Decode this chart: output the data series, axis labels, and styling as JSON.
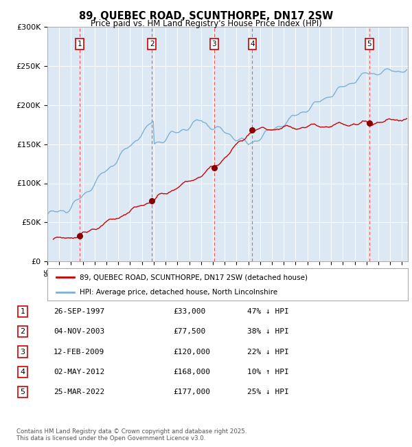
{
  "title": "89, QUEBEC ROAD, SCUNTHORPE, DN17 2SW",
  "subtitle": "Price paid vs. HM Land Registry's House Price Index (HPI)",
  "legend_line1": "89, QUEBEC ROAD, SCUNTHORPE, DN17 2SW (detached house)",
  "legend_line2": "HPI: Average price, detached house, North Lincolnshire",
  "footer_line1": "Contains HM Land Registry data © Crown copyright and database right 2025.",
  "footer_line2": "This data is licensed under the Open Government Licence v3.0.",
  "sale_dates": [
    "26-SEP-1997",
    "04-NOV-2003",
    "12-FEB-2009",
    "02-MAY-2012",
    "25-MAR-2022"
  ],
  "sale_prices": [
    33000,
    77500,
    120000,
    168000,
    177000
  ],
  "sale_hpi_pct": [
    "47% ↓ HPI",
    "38% ↓ HPI",
    "22% ↓ HPI",
    "10% ↑ HPI",
    "25% ↓ HPI"
  ],
  "sale_years_x": [
    1997.73,
    2003.84,
    2009.11,
    2012.34,
    2022.23
  ],
  "background_color": "#dce9f5",
  "plot_bg_color": "#dce9f5",
  "red_line_color": "#cc0000",
  "blue_line_color": "#7db0d4",
  "grid_color": "#ffffff",
  "dashed_color": "#ff4444",
  "ylim": [
    0,
    300000
  ],
  "yticks": [
    0,
    50000,
    100000,
    150000,
    200000,
    250000,
    300000
  ],
  "ytick_labels": [
    "£0",
    "£50K",
    "£100K",
    "£150K",
    "£200K",
    "£250K",
    "£300K"
  ],
  "xlim_start": 1995.0,
  "xlim_end": 2025.5
}
